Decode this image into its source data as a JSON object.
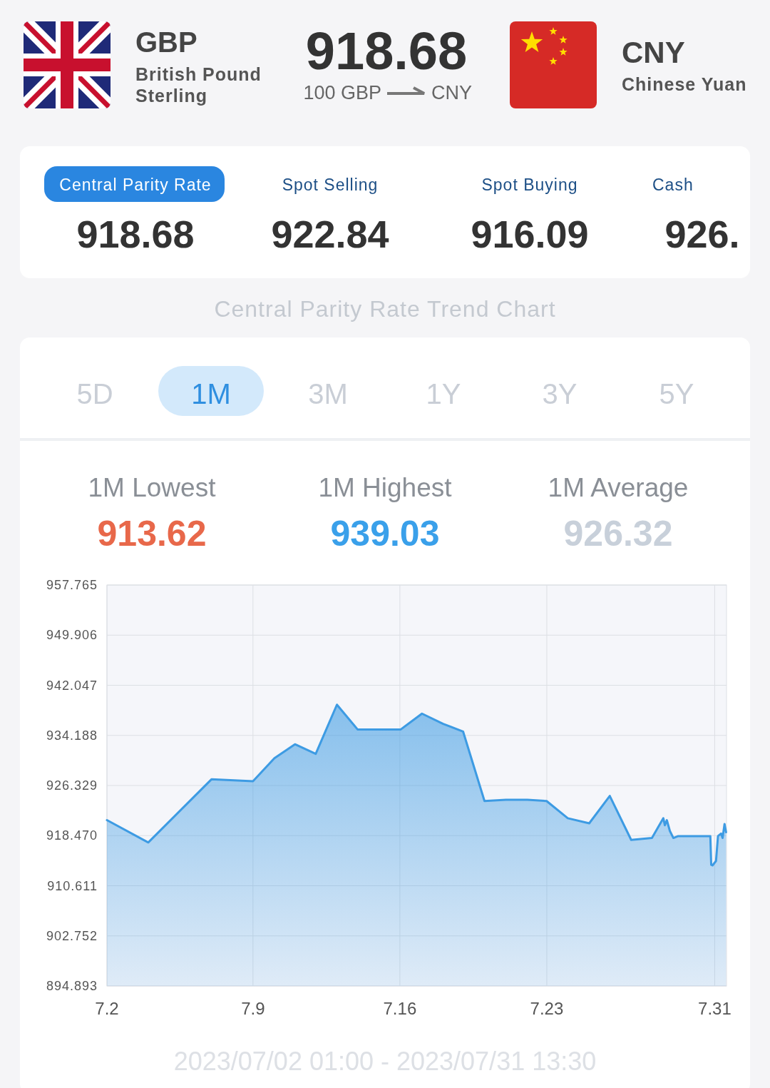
{
  "chart_data": [
    {
      "type": "other",
      "annotations": [
        "GBP",
        "British Pound Sterling",
        "918.68",
        "100 GBP",
        "CNY",
        "CNY",
        "Chinese Yuan",
        "Central Parity Rate",
        "918.68",
        "Spot Selling",
        "922.84",
        "Spot Buying",
        "916.09",
        "Cash",
        "926."
      ]
    },
    {
      "type": "area",
      "title": "Central Parity Rate Trend Chart",
      "annotations": [
        "5D",
        "1M",
        "3M",
        "1Y",
        "3Y",
        "5Y",
        "1M Lowest",
        "913.62",
        "1M Highest",
        "939.03",
        "1M Average",
        "926.32",
        "2023/07/02 01:00 - 2023/07/31 13:30"
      ],
      "x": [
        "2023-07-02T01:00",
        "2023-07-04T00:15",
        "2023-07-07T00:30",
        "2023-07-09T00:00",
        "2023-07-10T00:30",
        "2023-07-11T00:00",
        "2023-07-11T23:45",
        "2023-07-13T00:00",
        "2023-07-13T23:45",
        "2023-07-16T00:45",
        "2023-07-17T01:15",
        "2023-07-18T01:30",
        "2023-07-19T00:15",
        "2023-07-20T00:45",
        "2023-07-21T01:15",
        "2023-07-22T01:45",
        "2023-07-22T23:45",
        "2023-07-24T00:00",
        "2023-07-25T00:30",
        "2023-07-26T00:00",
        "2023-07-27T00:30",
        "2023-07-28T00:15",
        "2023-07-28T13:15",
        "2023-07-28T15:00",
        "2023-07-28T17:15",
        "2023-07-28T20:45",
        "2023-07-29T00:45",
        "2023-07-29T06:15",
        "2023-07-30T19:00",
        "2023-07-30T20:00",
        "2023-07-30T21:30",
        "2023-07-31T01:30",
        "2023-07-31T03:45",
        "2023-07-31T07:15",
        "2023-07-31T09:00",
        "2023-07-31T11:15",
        "2023-07-31T13:00"
      ],
      "series": [
        {
          "color": "#3d9be3",
          "values": [
            920.9,
            917.4,
            927.3,
            927.0,
            930.6,
            932.8,
            931.3,
            939.0,
            935.1,
            935.1,
            937.6,
            936.0,
            934.8,
            923.9,
            924.1,
            924.1,
            923.9,
            921.2,
            920.4,
            924.7,
            917.8,
            918.1,
            921.2,
            920.1,
            920.9,
            919.2,
            918.1,
            918.4,
            918.4,
            913.9,
            913.8,
            914.5,
            918.4,
            918.8,
            918.1,
            920.3,
            919.0
          ]
        }
      ],
      "xlim": [
        "2023-07-02T01:00",
        "2023-07-31T13:30"
      ],
      "xticks": [
        {
          "value": "2023-07-02T01:00",
          "label": "7.2"
        },
        {
          "value": "2023-07-09",
          "label": "7.9"
        },
        {
          "value": "2023-07-16",
          "label": "7.16"
        },
        {
          "value": "2023-07-23",
          "label": "7.23"
        },
        {
          "value": "2023-07-31",
          "label": "7.31"
        }
      ],
      "ylim": [
        894.893,
        957.765
      ],
      "yticks": [
        {
          "value": 894.893,
          "label": "894.893"
        },
        {
          "value": 902.752,
          "label": "902.752"
        },
        {
          "value": 910.611,
          "label": "910.611"
        },
        {
          "value": 918.47,
          "label": "918.470"
        },
        {
          "value": 926.329,
          "label": "926.329"
        },
        {
          "value": 934.188,
          "label": "934.188"
        },
        {
          "value": 942.047,
          "label": "942.047"
        },
        {
          "value": 949.906,
          "label": "949.906"
        },
        {
          "value": 957.765,
          "label": "957.765"
        }
      ],
      "grid": true
    }
  ]
}
